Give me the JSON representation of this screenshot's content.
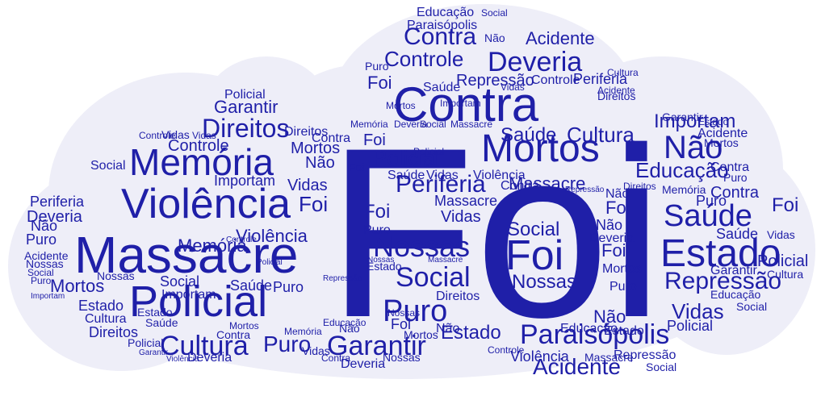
{
  "colors": {
    "background": "#ffffff",
    "cloud_fill": "#eeeef8",
    "word_primary": "#1f1fa8",
    "word_dark": "#0f0f7a"
  },
  "words": {
    "foi": "Foi",
    "contra": "Contra",
    "mortos": "Mortos",
    "massacre": "Massacre",
    "policial": "Policial",
    "violencia": "Violência",
    "memoria": "Memória",
    "direitos": "Direitos",
    "estado": "Estado",
    "saude": "Saúde",
    "controle": "Controle",
    "deveria": "Deveria",
    "acidente": "Acidente",
    "paraisopolis": "Paraisópolis",
    "garantir": "Garantir",
    "cultura": "Cultura",
    "puro": "Puro",
    "social": "Social",
    "nossas": "Nossas",
    "periferia": "Periferia",
    "nao": "Não",
    "repressao": "Repressão",
    "educacao": "Educação",
    "vidas": "Vidas",
    "importam": "Importam"
  }
}
